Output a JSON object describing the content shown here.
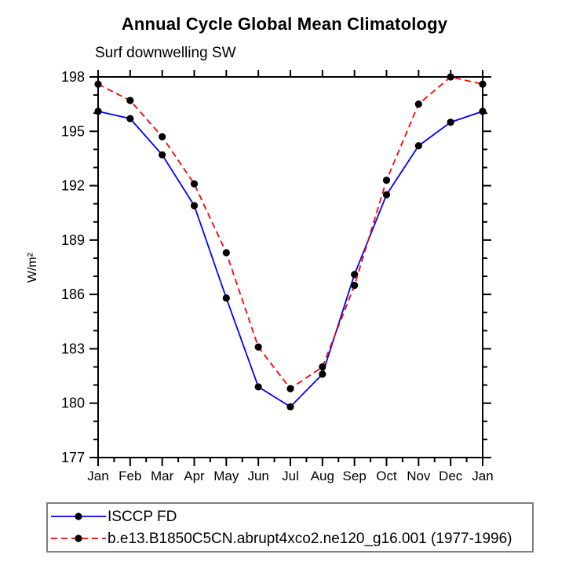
{
  "chart": {
    "title": "Annual Cycle Global Mean Climatology",
    "subtitle": "Surf downwelling SW"
  },
  "chart_data": {
    "type": "line",
    "title": "Annual Cycle Global Mean Climatology",
    "subtitle": "Surf downwelling SW",
    "categories": [
      "Jan",
      "Feb",
      "Mar",
      "Apr",
      "May",
      "Jun",
      "Jul",
      "Aug",
      "Sep",
      "Oct",
      "Nov",
      "Dec",
      "Jan"
    ],
    "xlabel": "",
    "ylabel": "W/m²",
    "ylim": [
      177,
      198
    ],
    "y_major_ticks": [
      177,
      180,
      183,
      186,
      189,
      192,
      195,
      198
    ],
    "y_minor_step": 1,
    "x_minor_midpoints": true,
    "grid": false,
    "legend_position": "bottom",
    "marker": "filled-circle",
    "marker_color": "#000000",
    "axis_color": "#000000",
    "series": [
      {
        "name": "ISCCP FD",
        "color": "#0000ff",
        "style": "solid",
        "values": [
          196.1,
          195.7,
          193.7,
          190.9,
          185.8,
          180.9,
          179.8,
          181.6,
          187.1,
          191.5,
          194.2,
          195.5,
          196.1
        ]
      },
      {
        "name": "b.e13.B1850C5CN.abrupt4xco2.ne120_g16.001 (1977-1996)",
        "color": "#ff0000",
        "style": "dashed",
        "values": [
          197.6,
          196.7,
          194.7,
          192.1,
          188.3,
          183.1,
          180.8,
          182.0,
          186.5,
          192.3,
          196.5,
          198.0,
          197.6
        ]
      }
    ]
  },
  "legend": {
    "items": [
      {
        "label": "ISCCP FD",
        "color": "#0000ff",
        "style": "solid"
      },
      {
        "label": "b.e13.B1850C5CN.abrupt4xco2.ne120_g16.001 (1977-1996)",
        "color": "#ff0000",
        "style": "dashed"
      }
    ]
  }
}
